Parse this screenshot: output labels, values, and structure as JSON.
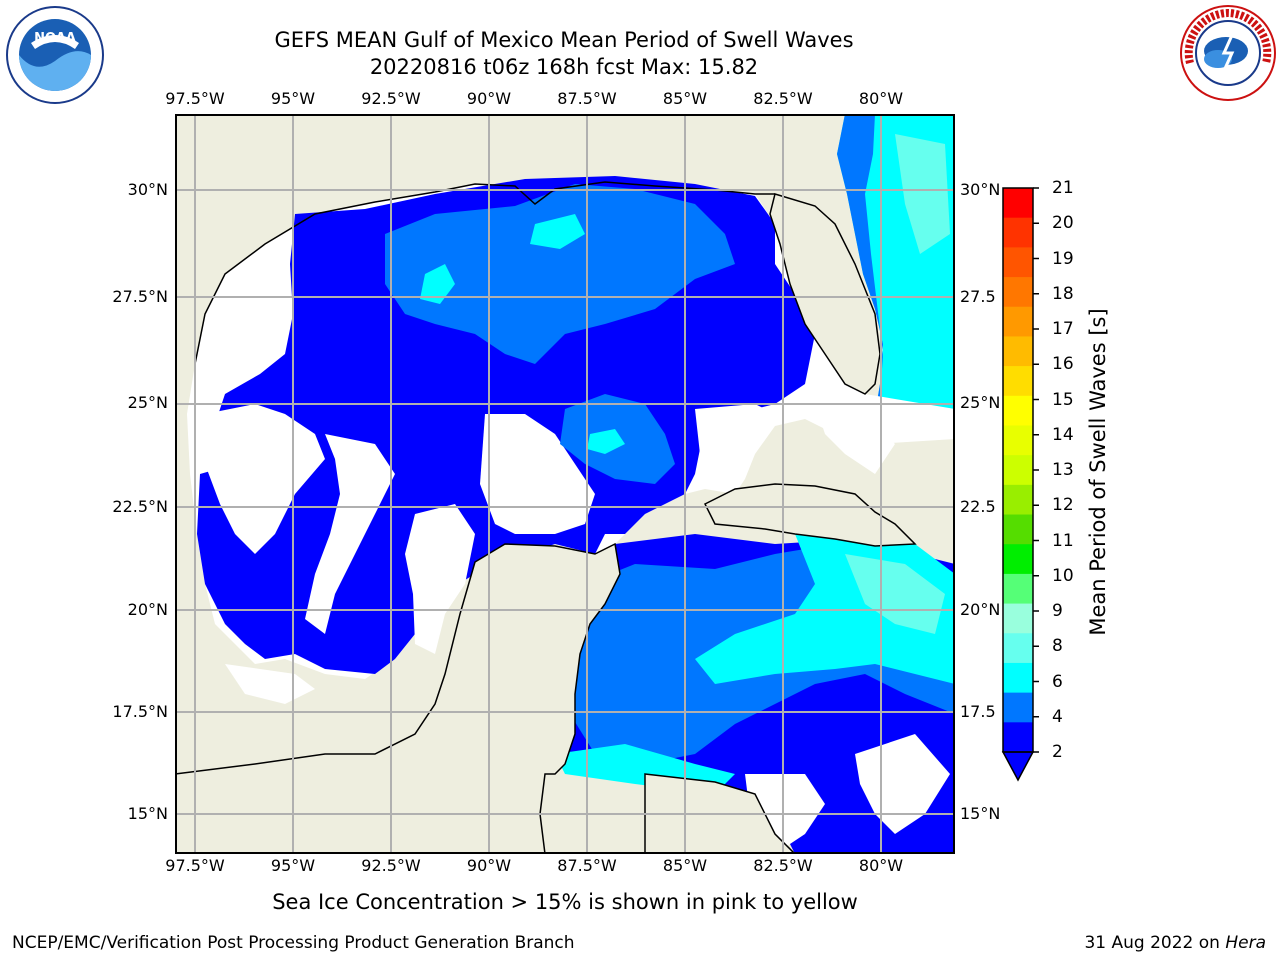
{
  "title_line1": "GEFS MEAN Gulf of Mexico Mean Period of Swell Waves",
  "title_line2": "20220816 t06z 168h fcst   Max: 15.82",
  "longitude_labels": [
    "97.5°W",
    "95°W",
    "92.5°W",
    "90°W",
    "87.5°W",
    "85°W",
    "82.5°W",
    "80°W"
  ],
  "latitude_labels_left": [
    "30°N",
    "27.5°N",
    "25°N",
    "22.5°N",
    "20°N",
    "17.5°N",
    "15°N"
  ],
  "latitude_labels_right": [
    "30°N",
    "27.5",
    "25°N",
    "22.5",
    "20°N",
    "17.5",
    "15°N"
  ],
  "colorbar": {
    "label": "Mean Period of Swell Waves [s]",
    "ticks": [
      "21",
      "20",
      "19",
      "18",
      "17",
      "16",
      "15",
      "14",
      "13",
      "12",
      "11",
      "10",
      "9",
      "8",
      "6",
      "4",
      "2"
    ],
    "colors_top_to_bottom": [
      "#ff0000",
      "#ff3300",
      "#ff5500",
      "#ff7700",
      "#ff9900",
      "#ffbb00",
      "#ffdd00",
      "#ffff00",
      "#e8ff00",
      "#ccff00",
      "#99ee00",
      "#55dd00",
      "#00ee00",
      "#55ff77",
      "#99ffdd",
      "#66ffee",
      "#00ffff",
      "#0077ff",
      "#0000ff"
    ],
    "extend": "min"
  },
  "colors": {
    "land": "#eeeedf",
    "no_data": "#ffffff",
    "period_2_4": "#0000ff",
    "period_4_6": "#0077ff",
    "period_6_8": "#00ffff",
    "period_8_9": "#66ffee",
    "period_9_10": "#99ffdd",
    "period_10_11": "#55ff77",
    "period_11_12": "#00ee00",
    "period_12_13": "#55dd00",
    "grid": "#b0b0b0"
  },
  "ice_note": "Sea Ice Concentration > 15% is shown in pink to yellow",
  "footer_left": "NCEP/EMC/Verification Post Processing Product Generation Branch",
  "footer_date": "31 Aug 2022 on ",
  "footer_machine": "Hera",
  "logos": {
    "left": "noaa-logo",
    "left_text": "NOAA",
    "right": "nws-logo",
    "right_text": "NATIONAL WEATHER SERVICE"
  }
}
